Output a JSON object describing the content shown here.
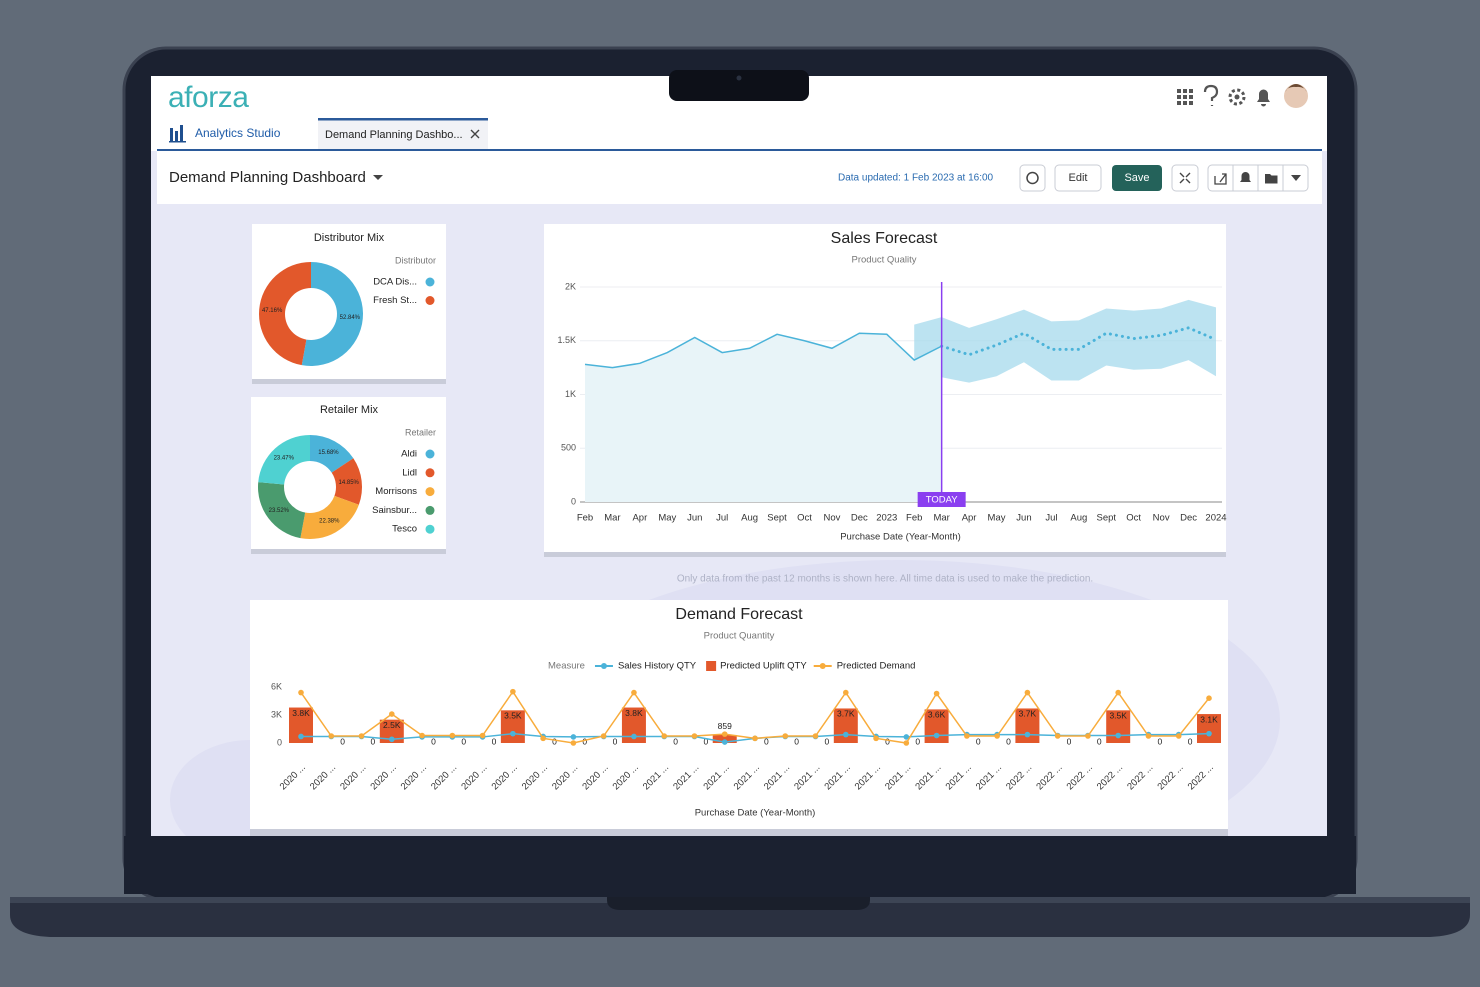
{
  "app": {
    "logo": "aforza",
    "nav_tab": "Analytics Studio",
    "open_tab": "Demand Planning Dashbo..."
  },
  "toolbar": {
    "title": "Demand Planning Dashboard",
    "updated": "Data updated: 1 Feb 2023 at 16:00",
    "edit": "Edit",
    "save": "Save"
  },
  "note": "Only data from the past 12 months is shown here. All time data is used to make the prediction.",
  "chart_data": [
    {
      "type": "donut",
      "title": "Distributor Mix",
      "legend_title": "Distributor",
      "categories": [
        "DCA Dis...",
        "Fresh St..."
      ],
      "values": [
        52.84,
        47.16
      ],
      "value_labels": [
        "52.84%",
        "47.16%"
      ],
      "colors": [
        "#4bb3d9",
        "#e2582b"
      ]
    },
    {
      "type": "donut",
      "title": "Retailer Mix",
      "legend_title": "Retailer",
      "categories": [
        "Aldi",
        "Lidl",
        "Morrisons",
        "Sainsbur...",
        "Tesco"
      ],
      "values": [
        15.68,
        14.85,
        22.38,
        23.52,
        23.47
      ],
      "value_labels": [
        "15.68%",
        "14.85%",
        "22.38%",
        "23.52%",
        "23.47%"
      ],
      "colors": [
        "#4bb3d9",
        "#e2582b",
        "#f8ac3c",
        "#4a9b6e",
        "#4fd1d1"
      ]
    },
    {
      "type": "line",
      "title": "Sales Forecast",
      "subtitle": "Product Quality",
      "x_label": "Purchase Date (Year-Month)",
      "annotation": "TODAY",
      "categories": [
        "Feb",
        "Mar",
        "Apr",
        "May",
        "Jun",
        "Jul",
        "Aug",
        "Sept",
        "Oct",
        "Nov",
        "Dec",
        "2023",
        "Feb",
        "Mar",
        "Apr",
        "May",
        "Jun",
        "Jul",
        "Aug",
        "Sept",
        "Oct",
        "Nov",
        "Dec",
        "2024"
      ],
      "ylim": [
        0,
        2000
      ],
      "yticks": [
        0,
        500,
        {
          "value": 1000,
          "label": "1K"
        },
        {
          "value": 1500,
          "label": "1.5K"
        },
        {
          "value": 2000,
          "label": "2K"
        }
      ],
      "grid": true,
      "series": [
        {
          "color": "#4bb3d9",
          "values": [
            1280,
            1250,
            1290,
            1390,
            1530,
            1390,
            1430,
            1560,
            1500,
            1430,
            1570,
            1560,
            1320,
            1450,
            null,
            null,
            null,
            null,
            null,
            null,
            null,
            null,
            null,
            null
          ]
        },
        {
          "color": "#4bb3d9",
          "dashed": true,
          "values": [
            null,
            null,
            null,
            null,
            null,
            null,
            null,
            null,
            null,
            null,
            null,
            null,
            null,
            1450,
            1370,
            1460,
            1570,
            1420,
            1420,
            1570,
            1520,
            1550,
            1620,
            1510
          ]
        }
      ],
      "band": {
        "color": "#a6d9ec",
        "upper": [
          null,
          null,
          null,
          null,
          null,
          null,
          null,
          null,
          null,
          null,
          null,
          null,
          1650,
          1720,
          1620,
          1700,
          1790,
          1680,
          1690,
          1800,
          1780,
          1800,
          1880,
          1810
        ],
        "lower": [
          null,
          null,
          null,
          null,
          null,
          null,
          null,
          null,
          null,
          null,
          null,
          null,
          1070,
          1160,
          1110,
          1170,
          1300,
          1130,
          1130,
          1270,
          1230,
          1240,
          1320,
          1170
        ]
      }
    },
    {
      "type": "combo",
      "title": "Demand Forecast",
      "subtitle": "Product Quantity",
      "legend_title": "Measure",
      "x_label": "Purchase Date (Year-Month)",
      "categories": [
        "2020 ...",
        "2020 ...",
        "2020 ...",
        "2020 ...",
        "2020 ...",
        "2020 ...",
        "2020 ...",
        "2020 ...",
        "2020 ...",
        "2020 ...",
        "2020 ...",
        "2020 ...",
        "2021 ...",
        "2021 ...",
        "2021 ...",
        "2021 ...",
        "2021 ...",
        "2021 ...",
        "2021 ...",
        "2021 ...",
        "2021 ...",
        "2021 ...",
        "2021 ...",
        "2021 ...",
        "2022 ...",
        "2022 ...",
        "2022 ...",
        "2022 ...",
        "2022 ...",
        "2022 ...",
        "2022 ..."
      ],
      "ylim": [
        0,
        6000
      ],
      "yticks": [
        0,
        {
          "value": 3000,
          "label": "3K"
        },
        {
          "value": 6000,
          "label": "6K"
        }
      ],
      "series": [
        {
          "name": "Sales History QTY",
          "type": "line",
          "color": "#4bb3d9",
          "values": [
            700,
            700,
            700,
            400,
            650,
            650,
            650,
            1000,
            700,
            650,
            700,
            700,
            700,
            700,
            100,
            500,
            700,
            700,
            900,
            700,
            650,
            800,
            900,
            900,
            900,
            800,
            800,
            800,
            900,
            900,
            1000
          ]
        },
        {
          "name": "Predicted Uplift QTY",
          "type": "bar",
          "color": "#e2582b",
          "values": [
            3800,
            0,
            0,
            2500,
            0,
            0,
            0,
            3500,
            0,
            0,
            0,
            3800,
            0,
            0,
            859,
            0,
            0,
            0,
            3700,
            0,
            0,
            3600,
            0,
            0,
            3700,
            0,
            0,
            3500,
            0,
            0,
            3100
          ],
          "value_labels": [
            "3.8K",
            "0",
            "0",
            "2.5K",
            "0",
            "0",
            "0",
            "3.5K",
            "0",
            "0",
            "0",
            "3.8K",
            "0",
            "0",
            "859",
            "0",
            "0",
            "0",
            "3.7K",
            "0",
            "0",
            "3.6K",
            "0",
            "0",
            "3.7K",
            "0",
            "0",
            "3.5K",
            "0",
            "0",
            "3.1K"
          ]
        },
        {
          "name": "Predicted Demand",
          "type": "line",
          "color": "#f8ac3c",
          "values": [
            5400,
            750,
            750,
            3100,
            800,
            800,
            800,
            5500,
            500,
            0,
            750,
            5400,
            750,
            750,
            950,
            500,
            750,
            750,
            5400,
            500,
            0,
            5300,
            750,
            750,
            5400,
            750,
            750,
            5400,
            750,
            750,
            4800
          ]
        }
      ]
    }
  ]
}
